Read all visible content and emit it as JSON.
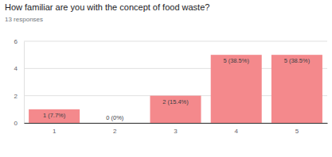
{
  "chart_data": {
    "type": "bar",
    "title": "How familiar are you with the concept of food waste?",
    "subtitle": "13 responses",
    "categories": [
      "1",
      "2",
      "3",
      "4",
      "5"
    ],
    "values": [
      1,
      0,
      2,
      5,
      5
    ],
    "value_labels": [
      "1 (7.7%)",
      "0 (0%)",
      "2 (15.4%)",
      "5 (38.5%)",
      "5 (38.5%)"
    ],
    "color": "#f4898c",
    "ylim": [
      0,
      6
    ],
    "yticks": [
      0,
      2,
      4,
      6
    ],
    "grid": true,
    "data_labels": true
  }
}
